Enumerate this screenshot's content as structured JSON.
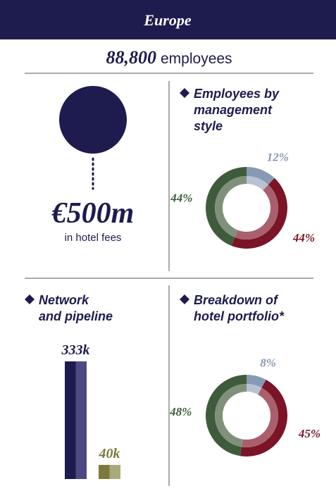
{
  "header": {
    "title": "Europe"
  },
  "employees": {
    "value": "88,800",
    "label": "employees"
  },
  "fees": {
    "value": "€500m",
    "label": "in hotel fees"
  },
  "chart_data": [
    {
      "type": "donut",
      "title": [
        "Employees by",
        "management",
        "style"
      ],
      "values": [
        12,
        44,
        44
      ],
      "value_labels": [
        "12%",
        "44%",
        "44%"
      ],
      "colors": [
        "#8799b3",
        "#7b1427",
        "#3e5c3b"
      ],
      "inner_colors": [
        "#b7c2d3",
        "#a9606c",
        "#7f917a"
      ]
    },
    {
      "type": "bar",
      "title": [
        "Network",
        "and pipeline"
      ],
      "categories": [
        null,
        null
      ],
      "values": [
        333000,
        40000
      ],
      "value_labels": [
        "333k",
        "40k"
      ],
      "colors": [
        "#1e1b4e",
        "#7b7a3c"
      ],
      "light_colors": [
        "#4c4a82",
        "#aaa97a"
      ],
      "label_colors": [
        "#1e1b4e",
        "#7b7a3c"
      ]
    },
    {
      "type": "donut",
      "title": [
        "Breakdown of",
        "hotel portfolio*"
      ],
      "values": [
        8,
        45,
        48
      ],
      "value_labels": [
        "8%",
        "45%",
        "48%"
      ],
      "colors": [
        "#8799b3",
        "#7b1427",
        "#3e5c3b"
      ],
      "inner_colors": [
        "#b7c2d3",
        "#a9606c",
        "#7f917a"
      ]
    }
  ]
}
